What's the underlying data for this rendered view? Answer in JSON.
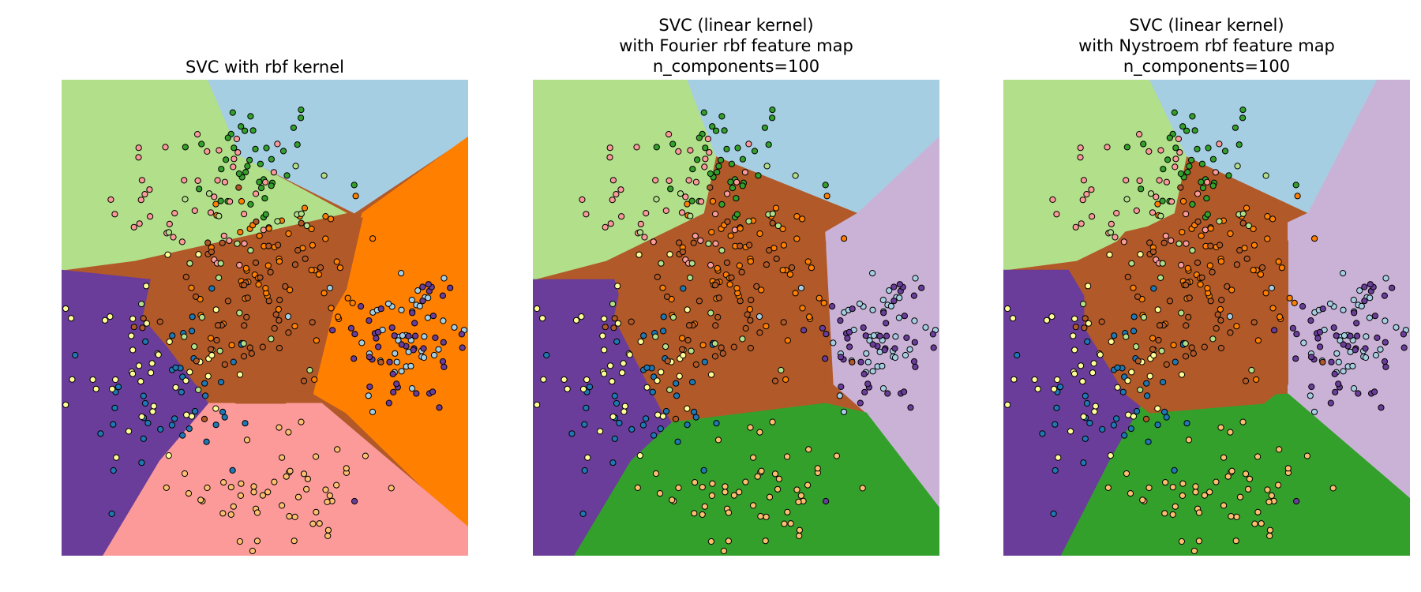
{
  "colors": {
    "c0": "#a6cee3",
    "c1": "#1f78b4",
    "c2": "#b2df8a",
    "c3": "#33a02c",
    "c4": "#fb9a99",
    "c5": "#e31a1c",
    "c6": "#fdbf6f",
    "c7": "#ff7f00",
    "c8": "#cab2d6",
    "c9": "#6a3d9a",
    "c10": "#ffff99",
    "c11": "#b15928"
  },
  "chart_data": [
    {
      "type": "scatter",
      "title": "SVC with rbf kernel",
      "title_lines": [
        "SVC with rbf kernel"
      ],
      "xlabel": "",
      "ylabel": "",
      "axes_visible": false,
      "regions": [
        {
          "fill": "#b2df8a",
          "polygon": [
            [
              0,
              1
            ],
            [
              0.36,
              1
            ],
            [
              0.44,
              0.84
            ],
            [
              0.7,
              0.72
            ],
            [
              0.18,
              0.62
            ],
            [
              0,
              0.6
            ]
          ]
        },
        {
          "fill": "#a6cee3",
          "polygon": [
            [
              0.36,
              1
            ],
            [
              1,
              1
            ],
            [
              1,
              0.88
            ],
            [
              0.72,
              0.72
            ],
            [
              0.44,
              0.84
            ]
          ]
        },
        {
          "fill": "#ff7f00",
          "polygon": [
            [
              1,
              0.88
            ],
            [
              1,
              0.05
            ],
            [
              0.7,
              0.3
            ],
            [
              0.62,
              0.34
            ],
            [
              0.7,
              0.62
            ],
            [
              0.74,
              0.72
            ]
          ]
        },
        {
          "fill": "#fb9a99",
          "polygon": [
            [
              0.1,
              0
            ],
            [
              1,
              0
            ],
            [
              1,
              0.06
            ],
            [
              0.64,
              0.32
            ],
            [
              0.36,
              0.32
            ],
            [
              0.24,
              0.22
            ]
          ]
        },
        {
          "fill": "#6a3d9a",
          "polygon": [
            [
              0,
              0.6
            ],
            [
              0.22,
              0.58
            ],
            [
              0.3,
              0.4
            ],
            [
              0.36,
              0.32
            ],
            [
              0.24,
              0.2
            ],
            [
              0.1,
              0
            ],
            [
              0,
              0
            ]
          ]
        },
        {
          "fill": "#b15928",
          "polygon": [
            [
              0.22,
              0.58
            ],
            [
              0.26,
              0.62
            ],
            [
              0.44,
              0.66
            ],
            [
              0.6,
              0.7
            ],
            [
              0.74,
              0.71
            ],
            [
              0.7,
              0.56
            ],
            [
              0.63,
              0.46
            ],
            [
              0.62,
              0.36
            ],
            [
              0.55,
              0.32
            ],
            [
              0.43,
              0.32
            ],
            [
              0.33,
              0.36
            ],
            [
              0.26,
              0.44
            ],
            [
              0.2,
              0.5
            ]
          ]
        }
      ],
      "clusters": [
        {
          "color": "#33a02c",
          "cx": 0.47,
          "cy": 0.83,
          "sx": 0.09,
          "sy": 0.07,
          "n": 40
        },
        {
          "color": "#fb9a99",
          "cx": 0.35,
          "cy": 0.75,
          "sx": 0.12,
          "sy": 0.08,
          "n": 45
        },
        {
          "color": "#a6cee3",
          "cx": 0.84,
          "cy": 0.46,
          "sx": 0.07,
          "sy": 0.09,
          "n": 45
        },
        {
          "color": "#6a3d9a",
          "cx": 0.86,
          "cy": 0.45,
          "sx": 0.09,
          "sy": 0.08,
          "n": 50
        },
        {
          "color": "#1f78b4",
          "cx": 0.28,
          "cy": 0.32,
          "sx": 0.1,
          "sy": 0.1,
          "n": 45
        },
        {
          "color": "#ffff99",
          "cx": 0.2,
          "cy": 0.4,
          "sx": 0.1,
          "sy": 0.1,
          "n": 45
        },
        {
          "color": "#fdbf6f",
          "cx": 0.56,
          "cy": 0.14,
          "sx": 0.12,
          "sy": 0.07,
          "n": 55
        },
        {
          "color": "#ff7f00",
          "cx": 0.53,
          "cy": 0.6,
          "sx": 0.1,
          "sy": 0.08,
          "n": 60
        },
        {
          "color": "#b15928",
          "cx": 0.45,
          "cy": 0.52,
          "sx": 0.12,
          "sy": 0.1,
          "n": 50
        },
        {
          "color": "#b2df8a",
          "cx": 0.43,
          "cy": 0.6,
          "sx": 0.1,
          "sy": 0.1,
          "n": 25
        }
      ]
    },
    {
      "type": "scatter",
      "title": "SVC (linear kernel) with Fourier rbf feature map n_components=100",
      "title_lines": [
        "SVC (linear kernel)",
        "with Fourier rbf feature map",
        "n_components=100"
      ],
      "xlabel": "",
      "ylabel": "",
      "axes_visible": false,
      "regions": [
        {
          "fill": "#b2df8a",
          "polygon": [
            [
              0,
              1
            ],
            [
              0.38,
              1
            ],
            [
              0.45,
              0.84
            ],
            [
              0.42,
              0.72
            ],
            [
              0.18,
              0.62
            ],
            [
              0,
              0.58
            ]
          ]
        },
        {
          "fill": "#a6cee3",
          "polygon": [
            [
              0.38,
              1
            ],
            [
              1,
              1
            ],
            [
              1,
              0.88
            ],
            [
              0.8,
              0.72
            ],
            [
              0.45,
              0.84
            ]
          ]
        },
        {
          "fill": "#cab2d6",
          "polygon": [
            [
              1,
              0.88
            ],
            [
              1,
              0.1
            ],
            [
              0.82,
              0.3
            ],
            [
              0.74,
              0.36
            ],
            [
              0.72,
              0.68
            ],
            [
              0.8,
              0.72
            ]
          ]
        },
        {
          "fill": "#33a02c",
          "polygon": [
            [
              0.1,
              0
            ],
            [
              1,
              0
            ],
            [
              1,
              0.1
            ],
            [
              0.82,
              0.3
            ],
            [
              0.72,
              0.32
            ],
            [
              0.34,
              0.28
            ],
            [
              0.24,
              0.2
            ]
          ]
        },
        {
          "fill": "#6a3d9a",
          "polygon": [
            [
              0,
              0.58
            ],
            [
              0.2,
              0.58
            ],
            [
              0.26,
              0.4
            ],
            [
              0.34,
              0.28
            ],
            [
              0.24,
              0.2
            ],
            [
              0.1,
              0
            ],
            [
              0,
              0
            ]
          ]
        },
        {
          "fill": "#b15928",
          "polygon": [
            [
              0.22,
              0.58
            ],
            [
              0.3,
              0.66
            ],
            [
              0.5,
              0.7
            ],
            [
              0.7,
              0.7
            ],
            [
              0.72,
              0.66
            ],
            [
              0.72,
              0.36
            ],
            [
              0.66,
              0.32
            ],
            [
              0.38,
              0.3
            ],
            [
              0.32,
              0.3
            ],
            [
              0.26,
              0.4
            ],
            [
              0.2,
              0.5
            ]
          ]
        }
      ],
      "clusters": [
        {
          "color": "#33a02c",
          "cx": 0.47,
          "cy": 0.83,
          "sx": 0.09,
          "sy": 0.07,
          "n": 40
        },
        {
          "color": "#fb9a99",
          "cx": 0.35,
          "cy": 0.75,
          "sx": 0.12,
          "sy": 0.08,
          "n": 45
        },
        {
          "color": "#a6cee3",
          "cx": 0.84,
          "cy": 0.46,
          "sx": 0.07,
          "sy": 0.09,
          "n": 45
        },
        {
          "color": "#6a3d9a",
          "cx": 0.86,
          "cy": 0.45,
          "sx": 0.09,
          "sy": 0.08,
          "n": 50
        },
        {
          "color": "#1f78b4",
          "cx": 0.28,
          "cy": 0.32,
          "sx": 0.1,
          "sy": 0.1,
          "n": 45
        },
        {
          "color": "#ffff99",
          "cx": 0.2,
          "cy": 0.4,
          "sx": 0.1,
          "sy": 0.1,
          "n": 45
        },
        {
          "color": "#fdbf6f",
          "cx": 0.56,
          "cy": 0.14,
          "sx": 0.12,
          "sy": 0.07,
          "n": 55
        },
        {
          "color": "#ff7f00",
          "cx": 0.53,
          "cy": 0.6,
          "sx": 0.1,
          "sy": 0.08,
          "n": 60
        },
        {
          "color": "#b15928",
          "cx": 0.45,
          "cy": 0.52,
          "sx": 0.12,
          "sy": 0.1,
          "n": 50
        },
        {
          "color": "#b2df8a",
          "cx": 0.43,
          "cy": 0.6,
          "sx": 0.1,
          "sy": 0.1,
          "n": 25
        }
      ]
    },
    {
      "type": "scatter",
      "title": "SVC (linear kernel) with Nystroem rbf feature map n_components=100",
      "title_lines": [
        "SVC (linear kernel)",
        "with Nystroem rbf feature map",
        "n_components=100"
      ],
      "xlabel": "",
      "ylabel": "",
      "axes_visible": false,
      "regions": [
        {
          "fill": "#b2df8a",
          "polygon": [
            [
              0,
              1
            ],
            [
              0.36,
              1
            ],
            [
              0.45,
              0.84
            ],
            [
              0.42,
              0.72
            ],
            [
              0.18,
              0.62
            ],
            [
              0,
              0.6
            ]
          ]
        },
        {
          "fill": "#a6cee3",
          "polygon": [
            [
              0.36,
              1
            ],
            [
              0.92,
              1
            ],
            [
              0.75,
              0.72
            ],
            [
              0.45,
              0.84
            ]
          ]
        },
        {
          "fill": "#cab2d6",
          "polygon": [
            [
              0.92,
              1
            ],
            [
              1,
              1
            ],
            [
              1,
              0.12
            ],
            [
              0.7,
              0.34
            ],
            [
              0.7,
              0.7
            ],
            [
              0.75,
              0.72
            ]
          ]
        },
        {
          "fill": "#33a02c",
          "polygon": [
            [
              0.14,
              0
            ],
            [
              1,
              0
            ],
            [
              1,
              0.12
            ],
            [
              0.7,
              0.34
            ],
            [
              0.34,
              0.32
            ],
            [
              0.26,
              0.2
            ]
          ]
        },
        {
          "fill": "#6a3d9a",
          "polygon": [
            [
              0,
              0.6
            ],
            [
              0.16,
              0.6
            ],
            [
              0.3,
              0.4
            ],
            [
              0.34,
              0.32
            ],
            [
              0.26,
              0.2
            ],
            [
              0.14,
              0
            ],
            [
              0,
              0
            ]
          ]
        },
        {
          "fill": "#b15928",
          "polygon": [
            [
              0.2,
              0.58
            ],
            [
              0.3,
              0.68
            ],
            [
              0.5,
              0.72
            ],
            [
              0.68,
              0.7
            ],
            [
              0.7,
              0.66
            ],
            [
              0.7,
              0.36
            ],
            [
              0.64,
              0.32
            ],
            [
              0.36,
              0.3
            ],
            [
              0.3,
              0.34
            ],
            [
              0.2,
              0.48
            ]
          ]
        }
      ],
      "clusters": [
        {
          "color": "#33a02c",
          "cx": 0.47,
          "cy": 0.83,
          "sx": 0.09,
          "sy": 0.07,
          "n": 40
        },
        {
          "color": "#fb9a99",
          "cx": 0.35,
          "cy": 0.75,
          "sx": 0.12,
          "sy": 0.08,
          "n": 45
        },
        {
          "color": "#a6cee3",
          "cx": 0.84,
          "cy": 0.46,
          "sx": 0.07,
          "sy": 0.09,
          "n": 45
        },
        {
          "color": "#6a3d9a",
          "cx": 0.86,
          "cy": 0.45,
          "sx": 0.09,
          "sy": 0.08,
          "n": 50
        },
        {
          "color": "#1f78b4",
          "cx": 0.28,
          "cy": 0.32,
          "sx": 0.1,
          "sy": 0.1,
          "n": 45
        },
        {
          "color": "#ffff99",
          "cx": 0.2,
          "cy": 0.4,
          "sx": 0.1,
          "sy": 0.1,
          "n": 45
        },
        {
          "color": "#fdbf6f",
          "cx": 0.56,
          "cy": 0.14,
          "sx": 0.12,
          "sy": 0.07,
          "n": 55
        },
        {
          "color": "#ff7f00",
          "cx": 0.53,
          "cy": 0.6,
          "sx": 0.1,
          "sy": 0.08,
          "n": 60
        },
        {
          "color": "#b15928",
          "cx": 0.45,
          "cy": 0.52,
          "sx": 0.12,
          "sy": 0.1,
          "n": 50
        },
        {
          "color": "#b2df8a",
          "cx": 0.43,
          "cy": 0.6,
          "sx": 0.1,
          "sy": 0.1,
          "n": 25
        }
      ]
    }
  ]
}
